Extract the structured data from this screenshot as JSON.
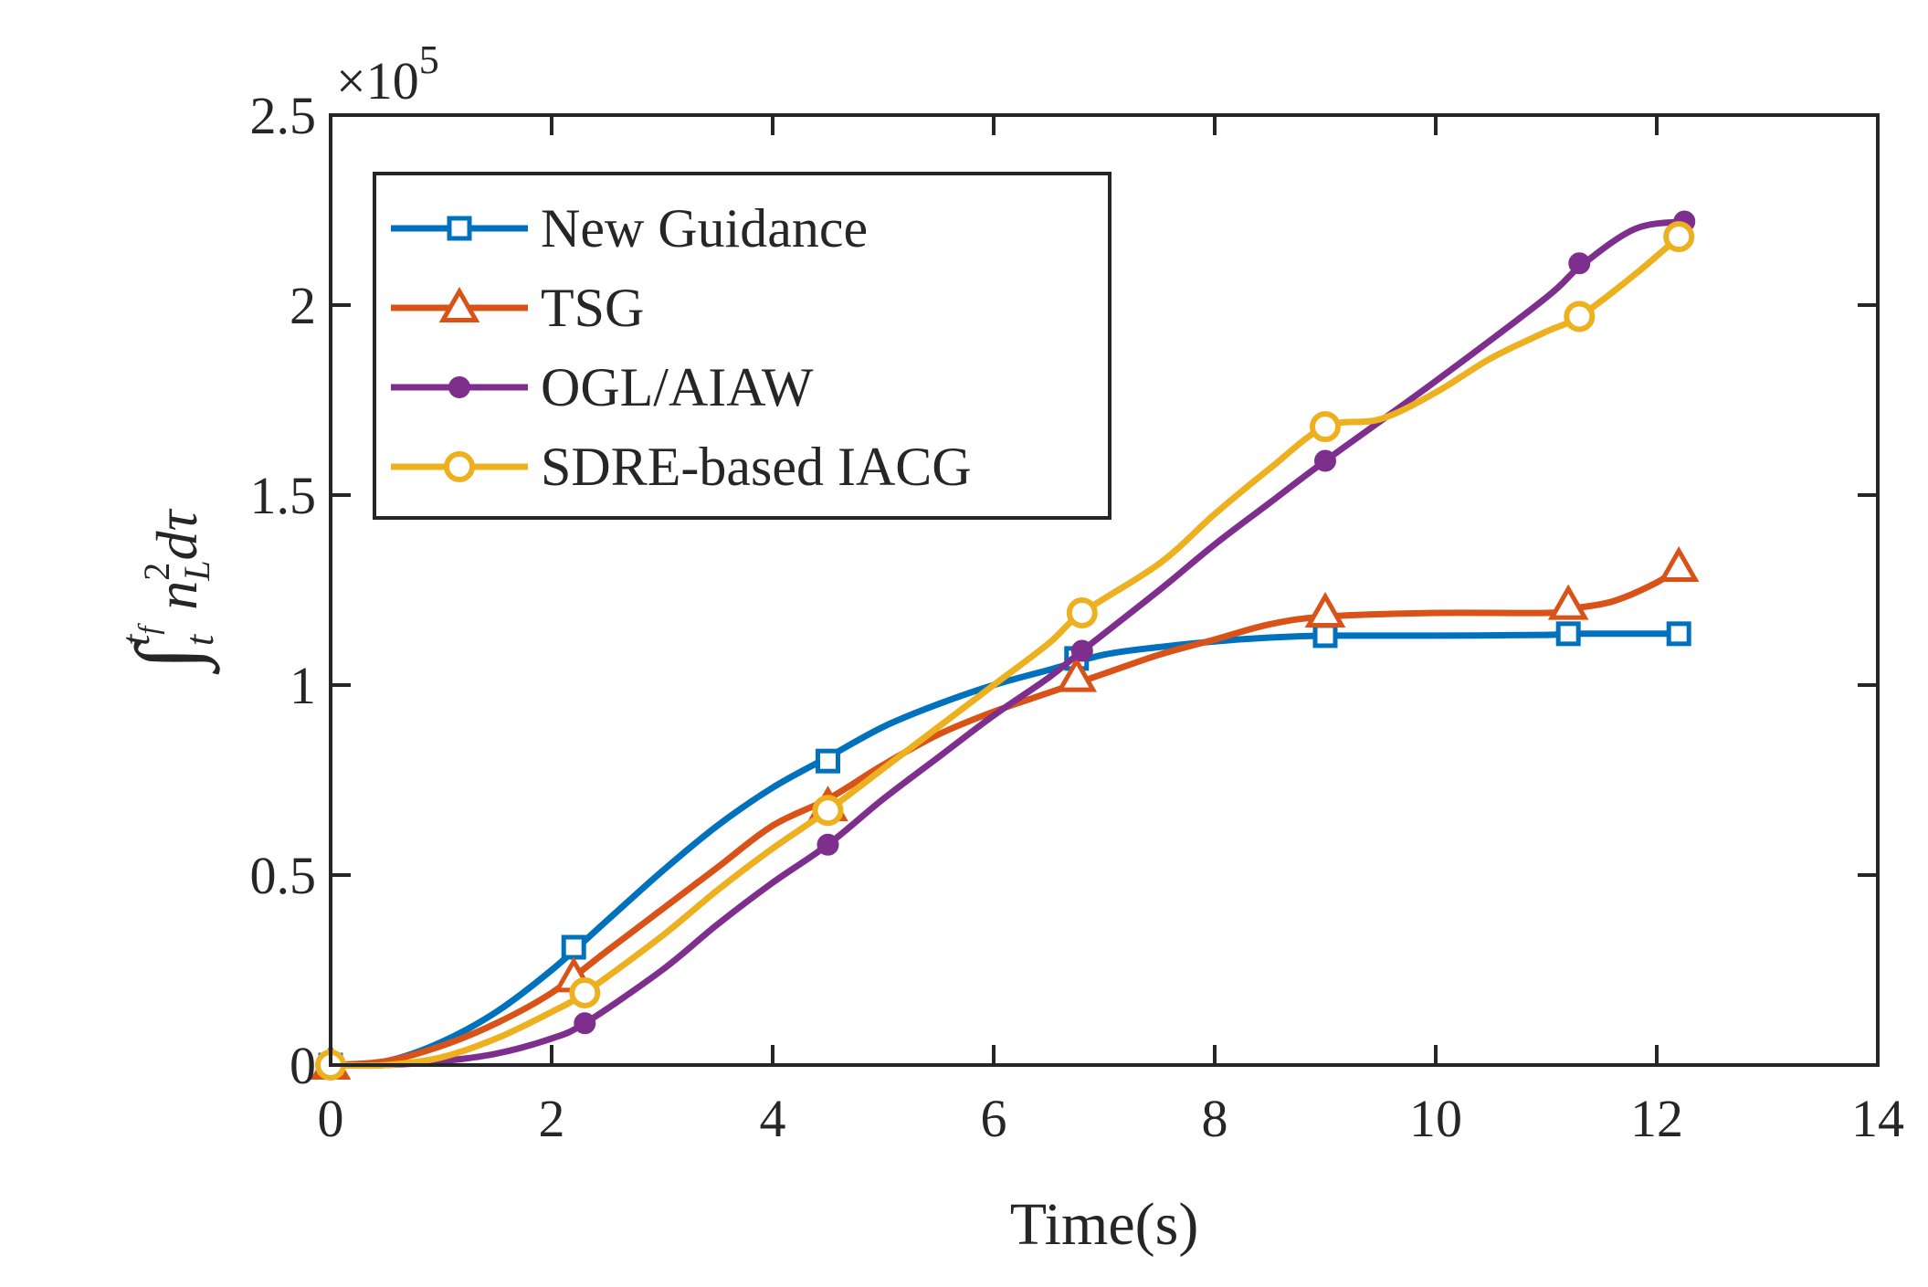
{
  "chart_data": {
    "type": "line",
    "xlabel": "Time(s)",
    "ylabel": "∫ₜ^{t_f} n_L² dτ",
    "ylabel_parts": {
      "integral": "∫",
      "lower": "t",
      "upper": "t",
      "upper_sub": "f",
      "var": "n",
      "var_sup": "2",
      "var_sub": "L",
      "diff": "dτ"
    },
    "y_exponent_label": "×10",
    "y_exponent_power": "5",
    "xlim": [
      0,
      14
    ],
    "ylim": [
      0,
      2.5
    ],
    "y_scale_factor": 100000,
    "xticks": [
      0,
      2,
      4,
      6,
      8,
      10,
      12,
      14
    ],
    "xtick_labels": [
      "0",
      "2",
      "4",
      "6",
      "8",
      "10",
      "12",
      "14"
    ],
    "yticks": [
      0,
      0.5,
      1,
      1.5,
      2,
      2.5
    ],
    "ytick_labels": [
      "0",
      "0.5",
      "1",
      "1.5",
      "2",
      "2.5"
    ],
    "grid": false,
    "legend_position": "top-left",
    "series": [
      {
        "name": "New Guidance",
        "color": "#0072BD",
        "marker": "square",
        "curve_x": [
          0,
          0.5,
          1.0,
          1.5,
          2.0,
          2.5,
          3.0,
          3.5,
          4.0,
          4.5,
          5.0,
          5.5,
          6.0,
          6.5,
          7.0,
          7.5,
          8.0,
          8.5,
          9.0,
          10.0,
          11.0,
          11.2,
          12.2
        ],
        "curve_y": [
          0,
          0.01,
          0.06,
          0.14,
          0.25,
          0.38,
          0.51,
          0.63,
          0.73,
          0.81,
          0.89,
          0.95,
          1.0,
          1.04,
          1.08,
          1.1,
          1.115,
          1.125,
          1.13,
          1.13,
          1.132,
          1.135,
          1.135
        ],
        "marker_x": [
          0,
          2.2,
          4.5,
          6.75,
          9.0,
          11.2,
          12.2
        ],
        "marker_y": [
          0,
          0.31,
          0.8,
          1.07,
          1.13,
          1.135,
          1.135
        ]
      },
      {
        "name": "TSG",
        "color": "#D95319",
        "marker": "triangle",
        "curve_x": [
          0,
          0.5,
          1.0,
          1.5,
          2.0,
          2.5,
          3.0,
          3.5,
          4.0,
          4.5,
          5.0,
          5.5,
          6.0,
          6.5,
          7.0,
          7.5,
          8.0,
          8.5,
          9.0,
          10.0,
          11.0,
          11.2,
          11.6,
          12.0,
          12.2
        ],
        "curve_y": [
          0,
          0.01,
          0.05,
          0.11,
          0.19,
          0.3,
          0.41,
          0.52,
          0.63,
          0.7,
          0.79,
          0.87,
          0.93,
          0.98,
          1.03,
          1.08,
          1.12,
          1.16,
          1.18,
          1.19,
          1.19,
          1.2,
          1.22,
          1.27,
          1.31
        ],
        "marker_x": [
          0,
          2.2,
          4.5,
          6.75,
          9.0,
          11.2,
          12.2
        ],
        "marker_y": [
          0,
          0.23,
          0.68,
          1.02,
          1.19,
          1.21,
          1.31
        ]
      },
      {
        "name": "OGL/AIAW",
        "color": "#7E2F8E",
        "marker": "dot",
        "curve_x": [
          0,
          0.5,
          1.0,
          1.5,
          2.0,
          2.3,
          3.0,
          3.5,
          4.0,
          4.5,
          5.0,
          5.5,
          6.0,
          6.5,
          6.8,
          7.5,
          8.0,
          8.5,
          9.0,
          10.0,
          11.0,
          11.3,
          11.8,
          12.25
        ],
        "curve_y": [
          0,
          0.0,
          0.01,
          0.03,
          0.07,
          0.11,
          0.25,
          0.37,
          0.48,
          0.58,
          0.7,
          0.81,
          0.92,
          1.02,
          1.09,
          1.25,
          1.37,
          1.48,
          1.59,
          1.8,
          2.02,
          2.1,
          2.2,
          2.22
        ],
        "marker_x": [
          0,
          2.3,
          4.5,
          6.8,
          9.0,
          11.3,
          12.25
        ],
        "marker_y": [
          0,
          0.11,
          0.58,
          1.09,
          1.59,
          2.11,
          2.22
        ]
      },
      {
        "name": "SDRE-based IACG",
        "color": "#EDB120",
        "marker": "circle",
        "curve_x": [
          0,
          0.5,
          1.0,
          1.5,
          2.0,
          2.3,
          3.0,
          3.5,
          4.0,
          4.5,
          5.0,
          5.5,
          6.0,
          6.5,
          6.8,
          7.5,
          8.0,
          8.5,
          9.0,
          9.5,
          10.0,
          10.5,
          11.0,
          11.3,
          11.8,
          12.2
        ],
        "curve_y": [
          0,
          0.0,
          0.02,
          0.07,
          0.14,
          0.19,
          0.34,
          0.46,
          0.57,
          0.67,
          0.78,
          0.89,
          1.0,
          1.11,
          1.19,
          1.32,
          1.45,
          1.57,
          1.68,
          1.7,
          1.77,
          1.86,
          1.93,
          1.97,
          2.08,
          2.18
        ],
        "marker_x": [
          0,
          2.3,
          4.5,
          6.8,
          9.0,
          11.3,
          12.2
        ],
        "marker_y": [
          0,
          0.19,
          0.67,
          1.19,
          1.68,
          1.97,
          2.18
        ]
      }
    ]
  }
}
